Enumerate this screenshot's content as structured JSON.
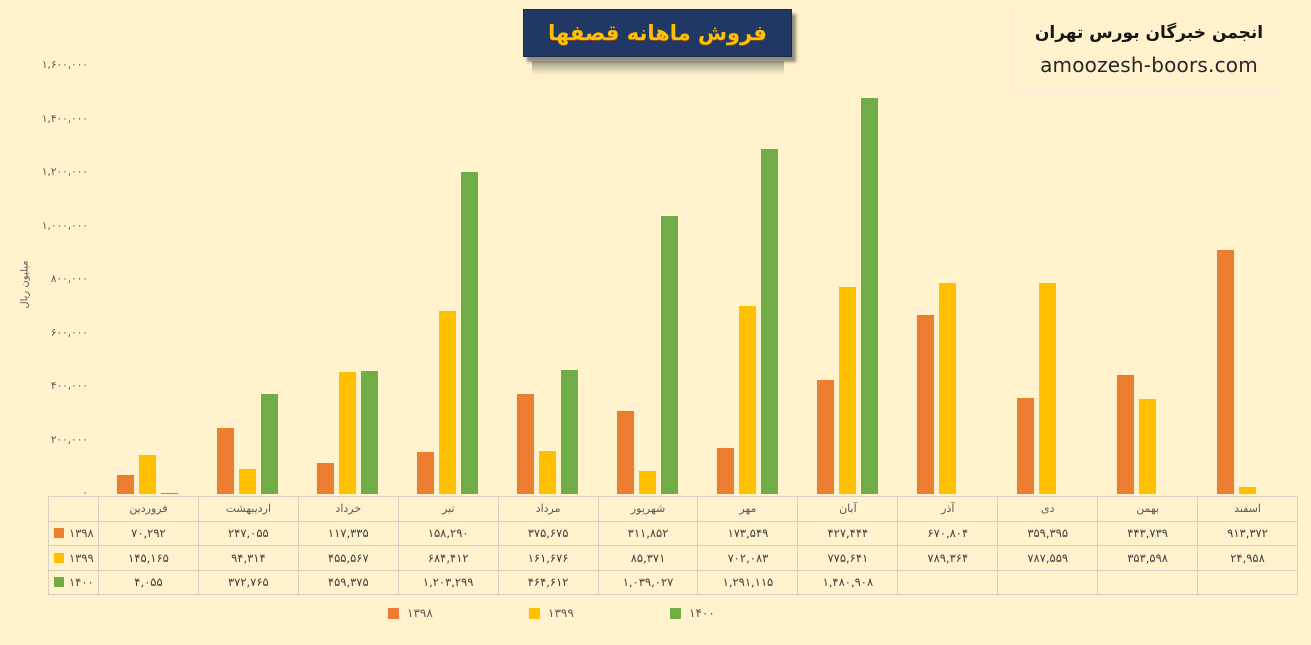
{
  "header": {
    "org": "انجمن خبرگان بورس تهران",
    "site": "amoozesh-boors.com"
  },
  "chart_data": {
    "type": "bar",
    "title": "فروش ماهانه قصفها",
    "ylabel": "میلیون ریال",
    "xlabel": "",
    "categories": [
      "فروردین",
      "اردیبهشت",
      "خرداد",
      "تیر",
      "مرداد",
      "شهریور",
      "مهر",
      "آبان",
      "آذر",
      "دی",
      "بهمن",
      "اسفند"
    ],
    "series": [
      {
        "name": "۱۳۹۸",
        "color": "#ED7D31",
        "values": [
          70292,
          247055,
          117335,
          158290,
          375675,
          311852,
          173549,
          427444,
          670804,
          359395,
          443739,
          913372
        ]
      },
      {
        "name": "۱۳۹۹",
        "color": "#FFC000",
        "values": [
          145165,
          94314,
          455567,
          684412,
          161676,
          85371,
          702083,
          775641,
          789364,
          787559,
          353598,
          24958
        ]
      },
      {
        "name": "۱۴۰۰",
        "color": "#70AD47",
        "values": [
          4055,
          372765,
          459375,
          1203299,
          464612,
          1039027,
          1291115,
          1480908,
          null,
          null,
          null,
          null
        ]
      }
    ],
    "ylim": [
      0,
      1600000
    ],
    "y_ticks_bottom_to_top": [
      "۰",
      "۲۰۰,۰۰۰",
      "۴۰۰,۰۰۰",
      "۶۰۰,۰۰۰",
      "۸۰۰,۰۰۰",
      "۱,۰۰۰,۰۰۰",
      "۱,۲۰۰,۰۰۰",
      "۱,۴۰۰,۰۰۰",
      "۱,۶۰۰,۰۰۰"
    ],
    "grid": false,
    "legend_position": "bottom"
  },
  "table": {
    "months": [
      "فروردین",
      "اردیبهشت",
      "خرداد",
      "تیر",
      "مرداد",
      "شهریور",
      "مهر",
      "آبان",
      "آذر",
      "دی",
      "بهمن",
      "اسفند"
    ],
    "rows": [
      {
        "year": "۱۳۹۸",
        "color": "#ED7D31",
        "cells": [
          "۷۰,۲۹۲",
          "۲۴۷,۰۵۵",
          "۱۱۷,۳۳۵",
          "۱۵۸,۲۹۰",
          "۳۷۵,۶۷۵",
          "۳۱۱,۸۵۲",
          "۱۷۳,۵۴۹",
          "۴۲۷,۴۴۴",
          "۶۷۰,۸۰۴",
          "۳۵۹,۳۹۵",
          "۴۴۳,۷۳۹",
          "۹۱۳,۳۷۲"
        ]
      },
      {
        "year": "۱۳۹۹",
        "color": "#FFC000",
        "cells": [
          "۱۴۵,۱۶۵",
          "۹۴,۳۱۴",
          "۴۵۵,۵۶۷",
          "۶۸۴,۴۱۲",
          "۱۶۱,۶۷۶",
          "۸۵,۳۷۱",
          "۷۰۲,۰۸۳",
          "۷۷۵,۶۴۱",
          "۷۸۹,۳۶۴",
          "۷۸۷,۵۵۹",
          "۳۵۳,۵۹۸",
          "۲۴,۹۵۸"
        ]
      },
      {
        "year": "۱۴۰۰",
        "color": "#70AD47",
        "cells": [
          "۴,۰۵۵",
          "۳۷۲,۷۶۵",
          "۴۵۹,۳۷۵",
          "۱,۲۰۳,۲۹۹",
          "۴۶۴,۶۱۲",
          "۱,۰۳۹,۰۲۷",
          "۱,۲۹۱,۱۱۵",
          "۱,۴۸۰,۹۰۸",
          "",
          "",
          "",
          ""
        ]
      }
    ]
  }
}
